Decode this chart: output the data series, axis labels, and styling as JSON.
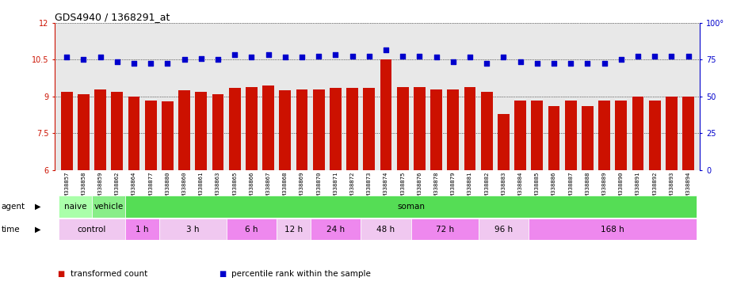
{
  "title": "GDS4940 / 1368291_at",
  "samples": [
    "GSM338857",
    "GSM338858",
    "GSM338859",
    "GSM338862",
    "GSM338864",
    "GSM338877",
    "GSM338880",
    "GSM338860",
    "GSM338861",
    "GSM338863",
    "GSM338865",
    "GSM338866",
    "GSM338867",
    "GSM338868",
    "GSM338869",
    "GSM338870",
    "GSM338871",
    "GSM338872",
    "GSM338873",
    "GSM338874",
    "GSM338875",
    "GSM338876",
    "GSM338878",
    "GSM338879",
    "GSM338881",
    "GSM338882",
    "GSM338883",
    "GSM338884",
    "GSM338885",
    "GSM338886",
    "GSM338887",
    "GSM338888",
    "GSM338889",
    "GSM338890",
    "GSM338891",
    "GSM338892",
    "GSM338893",
    "GSM338894"
  ],
  "bar_values": [
    9.2,
    9.1,
    9.3,
    9.2,
    9.0,
    8.85,
    8.8,
    9.25,
    9.2,
    9.1,
    9.35,
    9.4,
    9.45,
    9.25,
    9.3,
    9.3,
    9.35,
    9.35,
    9.35,
    10.5,
    9.4,
    9.4,
    9.3,
    9.3,
    9.4,
    9.2,
    8.3,
    8.85,
    8.85,
    8.6,
    8.85,
    8.6,
    8.85,
    8.85,
    9.0,
    8.85,
    9.0,
    9.0
  ],
  "dot_values": [
    10.6,
    10.5,
    10.6,
    10.4,
    10.35,
    10.35,
    10.35,
    10.5,
    10.55,
    10.5,
    10.7,
    10.6,
    10.7,
    10.6,
    10.6,
    10.65,
    10.7,
    10.65,
    10.65,
    10.9,
    10.65,
    10.65,
    10.6,
    10.4,
    10.6,
    10.35,
    10.6,
    10.4,
    10.35,
    10.35,
    10.35,
    10.35,
    10.35,
    10.5,
    10.65,
    10.65,
    10.65,
    10.65
  ],
  "ylim_left": [
    6,
    12
  ],
  "yticks_left": [
    6,
    7.5,
    9,
    10.5,
    12
  ],
  "yticks_right": [
    0,
    25,
    50,
    75,
    100
  ],
  "ylim_right": [
    0,
    100
  ],
  "bar_color": "#cc1100",
  "dot_color": "#0000cc",
  "bg_color": "#e8e8e8",
  "agent_row": {
    "label": "agent",
    "groups": [
      {
        "name": "naive",
        "color": "#aaffaa",
        "start": 0,
        "end": 2
      },
      {
        "name": "vehicle",
        "color": "#88ee88",
        "start": 2,
        "end": 4
      },
      {
        "name": "soman",
        "color": "#55dd55",
        "start": 4,
        "end": 38
      }
    ]
  },
  "time_row": {
    "label": "time",
    "groups": [
      {
        "name": "control",
        "color": "#f0c8f0",
        "start": 0,
        "end": 4
      },
      {
        "name": "1 h",
        "color": "#ee88ee",
        "start": 4,
        "end": 6
      },
      {
        "name": "3 h",
        "color": "#f0c8f0",
        "start": 6,
        "end": 10
      },
      {
        "name": "6 h",
        "color": "#ee88ee",
        "start": 10,
        "end": 13
      },
      {
        "name": "12 h",
        "color": "#f0c8f0",
        "start": 13,
        "end": 15
      },
      {
        "name": "24 h",
        "color": "#ee88ee",
        "start": 15,
        "end": 18
      },
      {
        "name": "48 h",
        "color": "#f0c8f0",
        "start": 18,
        "end": 21
      },
      {
        "name": "72 h",
        "color": "#ee88ee",
        "start": 21,
        "end": 25
      },
      {
        "name": "96 h",
        "color": "#f0c8f0",
        "start": 25,
        "end": 28
      },
      {
        "name": "168 h",
        "color": "#ee88ee",
        "start": 28,
        "end": 38
      }
    ]
  },
  "legend_items": [
    {
      "label": "transformed count",
      "color": "#cc1100"
    },
    {
      "label": "percentile rank within the sample",
      "color": "#0000cc"
    }
  ]
}
